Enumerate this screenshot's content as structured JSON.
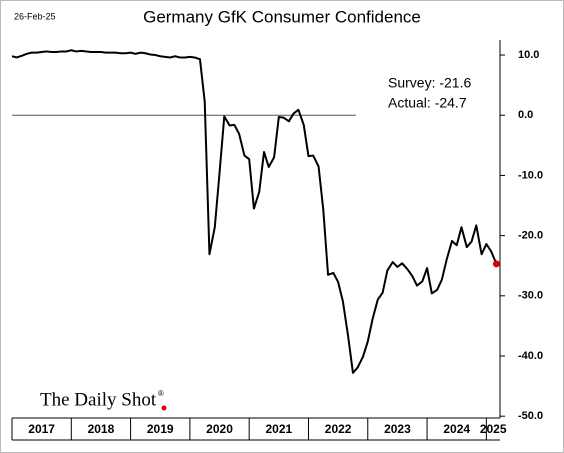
{
  "chart_data": {
    "type": "line",
    "title": "Germany GfK Consumer Confidence",
    "date": "26-Feb-25",
    "source": "The Daily Shot",
    "annotations": [
      "Survey: -21.6",
      "Actual:  -24.7"
    ],
    "x": [
      2017.0,
      2017.08,
      2017.17,
      2017.25,
      2017.33,
      2017.42,
      2017.5,
      2017.58,
      2017.67,
      2017.75,
      2017.83,
      2017.92,
      2018.0,
      2018.08,
      2018.17,
      2018.25,
      2018.33,
      2018.42,
      2018.5,
      2018.58,
      2018.67,
      2018.75,
      2018.83,
      2018.92,
      2019.0,
      2019.08,
      2019.17,
      2019.25,
      2019.33,
      2019.42,
      2019.5,
      2019.58,
      2019.67,
      2019.75,
      2019.83,
      2019.92,
      2020.0,
      2020.08,
      2020.17,
      2020.25,
      2020.33,
      2020.42,
      2020.5,
      2020.58,
      2020.67,
      2020.75,
      2020.83,
      2020.92,
      2021.0,
      2021.08,
      2021.17,
      2021.25,
      2021.33,
      2021.42,
      2021.5,
      2021.58,
      2021.67,
      2021.75,
      2021.83,
      2021.92,
      2022.0,
      2022.08,
      2022.17,
      2022.25,
      2022.33,
      2022.42,
      2022.5,
      2022.58,
      2022.67,
      2022.75,
      2022.83,
      2022.92,
      2023.0,
      2023.08,
      2023.17,
      2023.25,
      2023.33,
      2023.42,
      2023.5,
      2023.58,
      2023.67,
      2023.75,
      2023.83,
      2023.92,
      2024.0,
      2024.08,
      2024.17,
      2024.25,
      2024.33,
      2024.42,
      2024.5,
      2024.58,
      2024.67,
      2024.75,
      2024.83,
      2024.92,
      2025.0,
      2025.08,
      2025.17
    ],
    "series": [
      {
        "color": "#000000",
        "last_point_color": "#e00000",
        "values": [
          9.8,
          9.6,
          9.9,
          10.2,
          10.4,
          10.4,
          10.5,
          10.6,
          10.5,
          10.5,
          10.6,
          10.6,
          10.8,
          10.6,
          10.7,
          10.6,
          10.5,
          10.5,
          10.5,
          10.4,
          10.4,
          10.4,
          10.3,
          10.3,
          10.4,
          10.2,
          10.4,
          10.3,
          10.1,
          10.0,
          9.8,
          9.7,
          9.6,
          9.8,
          9.6,
          9.6,
          9.7,
          9.6,
          9.3,
          2.3,
          -23.1,
          -18.6,
          -9.6,
          -0.2,
          -1.7,
          -1.6,
          -3.1,
          -6.7,
          -7.3,
          -15.5,
          -12.7,
          -6.1,
          -8.6,
          -7.0,
          -0.3,
          -0.4,
          -1.0,
          0.3,
          0.9,
          -1.6,
          -6.8,
          -6.7,
          -8.5,
          -15.7,
          -26.5,
          -26.2,
          -27.7,
          -30.9,
          -36.8,
          -42.8,
          -41.9,
          -40.1,
          -37.6,
          -33.9,
          -30.6,
          -29.5,
          -25.8,
          -24.4,
          -25.2,
          -24.6,
          -25.6,
          -26.7,
          -28.3,
          -27.6,
          -25.4,
          -29.6,
          -29.0,
          -27.3,
          -24.0,
          -20.9,
          -21.6,
          -18.6,
          -21.9,
          -21.0,
          -18.3,
          -23.1,
          -21.4,
          -22.6,
          -24.7
        ]
      }
    ],
    "reference_line": {
      "y": 0,
      "x": [
        2017,
        2022.8
      ]
    },
    "xlim": [
      2017,
      2025.23
    ],
    "xticks": [
      2017,
      2018,
      2019,
      2020,
      2021,
      2022,
      2023,
      2024,
      2025
    ],
    "ylim": [
      -50.3,
      12.5
    ],
    "yticks": [
      {
        "value": 10,
        "label": "10.0"
      },
      {
        "value": 0,
        "label": "0.0"
      },
      {
        "value": -10,
        "label": "-10.0"
      },
      {
        "value": -20,
        "label": "-20.0"
      },
      {
        "value": -30,
        "label": "-30.0"
      },
      {
        "value": -40,
        "label": "-40.0"
      },
      {
        "value": -50,
        "label": "-50.0"
      }
    ]
  }
}
